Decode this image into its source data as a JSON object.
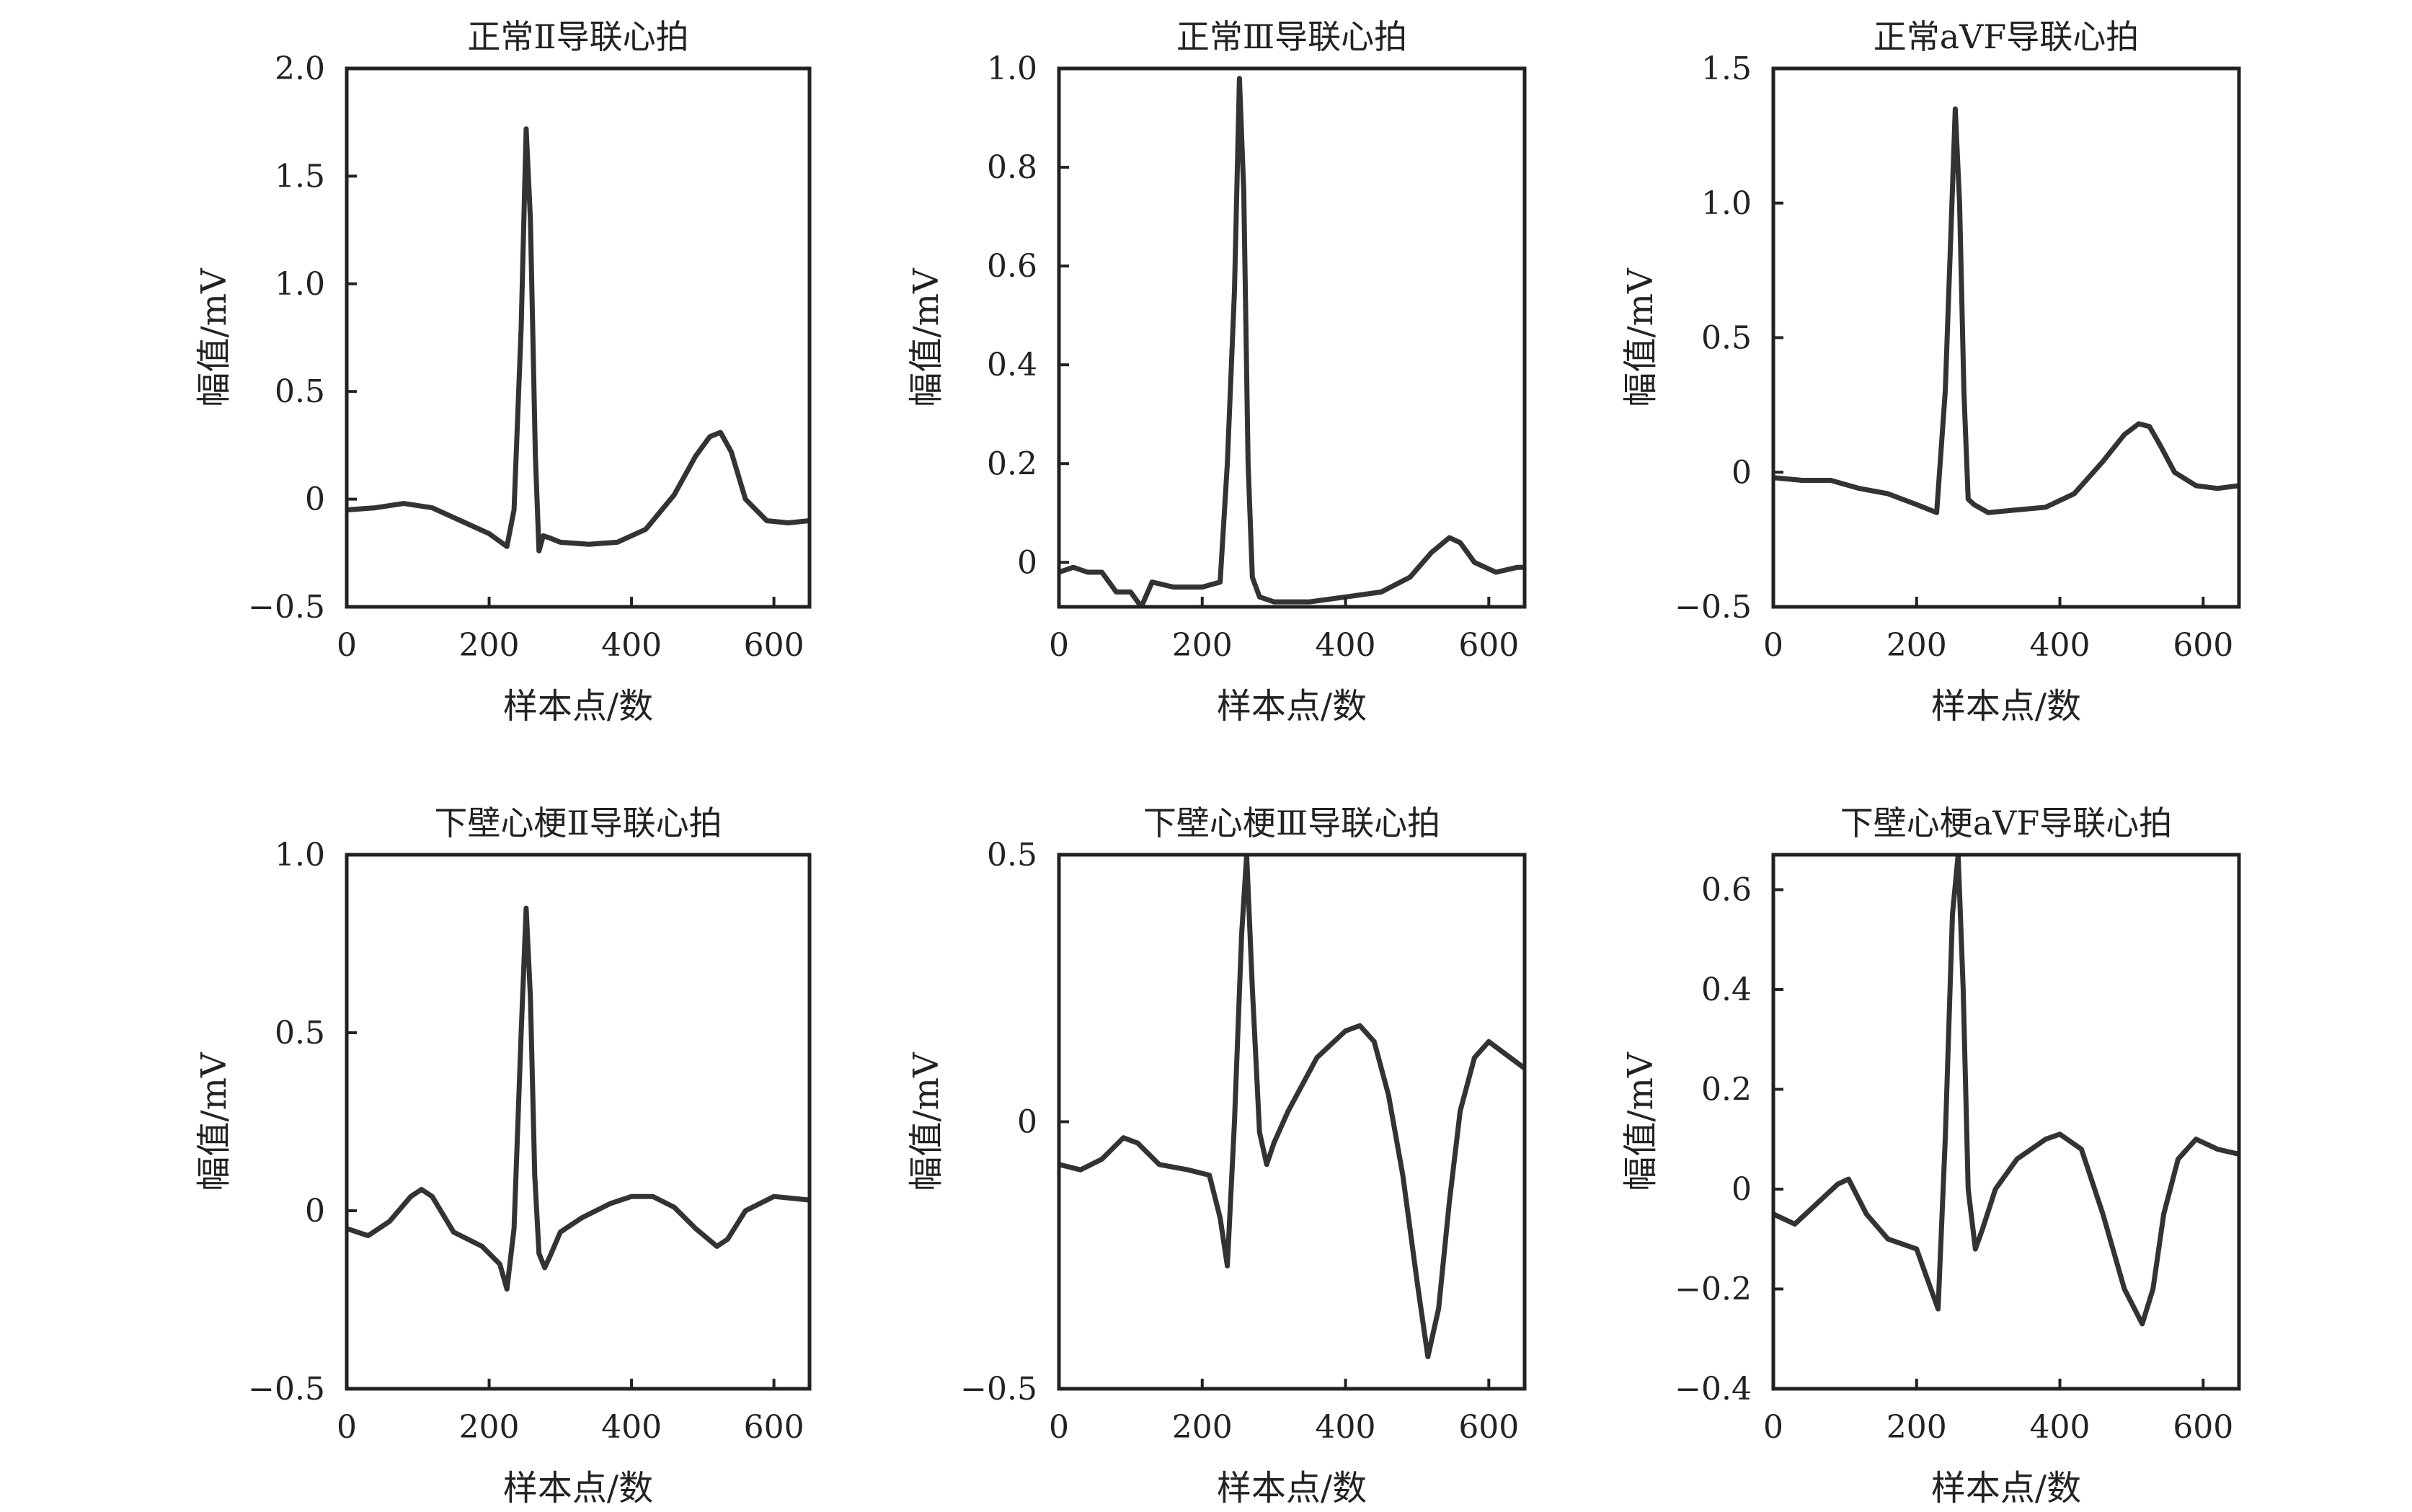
{
  "chart_data": [
    {
      "type": "line",
      "title": "正常Ⅱ导联心拍",
      "xlabel": "样本点/数",
      "ylabel": "幅值/mV",
      "xlim": [
        0,
        650
      ],
      "ylim": [
        -0.5,
        2.0
      ],
      "xticks": [
        0,
        200,
        400,
        600
      ],
      "xtick_labels": [
        "0",
        "200",
        "400",
        "600"
      ],
      "yticks": [
        -0.5,
        0,
        0.5,
        1.0,
        1.5,
        2.0
      ],
      "ytick_labels": [
        "−0.5",
        "0",
        "0.5",
        "1.0",
        "1.5",
        "2.0"
      ],
      "series": [
        {
          "x": [
            0,
            40,
            80,
            120,
            160,
            200,
            225,
            235,
            245,
            252,
            258,
            265,
            270,
            276,
            285,
            300,
            340,
            380,
            420,
            460,
            490,
            510,
            525,
            540,
            560,
            590,
            620,
            650
          ],
          "y": [
            -0.05,
            -0.04,
            -0.02,
            -0.04,
            -0.1,
            -0.16,
            -0.22,
            -0.05,
            0.8,
            1.72,
            1.3,
            0.2,
            -0.24,
            -0.17,
            -0.18,
            -0.2,
            -0.21,
            -0.2,
            -0.14,
            0.02,
            0.2,
            0.29,
            0.31,
            0.22,
            0.0,
            -0.1,
            -0.11,
            -0.1
          ]
        }
      ]
    },
    {
      "type": "line",
      "title": "正常Ⅲ导联心拍",
      "xlabel": "样本点/数",
      "ylabel": "幅值/mV",
      "xlim": [
        0,
        650
      ],
      "ylim": [
        -0.09,
        1.0
      ],
      "xticks": [
        0,
        200,
        400,
        600
      ],
      "xtick_labels": [
        "0",
        "200",
        "400",
        "600"
      ],
      "yticks": [
        0,
        0.2,
        0.4,
        0.6,
        0.8,
        1.0
      ],
      "ytick_labels": [
        "0",
        "0.2",
        "0.4",
        "0.6",
        "0.8",
        "1.0"
      ],
      "series": [
        {
          "x": [
            0,
            20,
            40,
            60,
            80,
            100,
            115,
            130,
            160,
            200,
            225,
            235,
            245,
            252,
            258,
            264,
            270,
            280,
            300,
            350,
            400,
            450,
            490,
            520,
            545,
            560,
            580,
            610,
            640,
            650
          ],
          "y": [
            -0.02,
            -0.01,
            -0.02,
            -0.02,
            -0.06,
            -0.06,
            -0.09,
            -0.04,
            -0.05,
            -0.05,
            -0.04,
            0.2,
            0.55,
            0.98,
            0.75,
            0.2,
            -0.03,
            -0.07,
            -0.08,
            -0.08,
            -0.07,
            -0.06,
            -0.03,
            0.02,
            0.05,
            0.04,
            0.0,
            -0.02,
            -0.01,
            -0.01
          ]
        }
      ]
    },
    {
      "type": "line",
      "title": "正常aVF导联心拍",
      "xlabel": "样本点/数",
      "ylabel": "幅值/mV",
      "xlim": [
        0,
        650
      ],
      "ylim": [
        -0.5,
        1.5
      ],
      "xticks": [
        0,
        200,
        400,
        600
      ],
      "xtick_labels": [
        "0",
        "200",
        "400",
        "600"
      ],
      "yticks": [
        -0.5,
        0,
        0.5,
        1.0,
        1.5
      ],
      "ytick_labels": [
        "−0.5",
        "0",
        "0.5",
        "1.0",
        "1.5"
      ],
      "series": [
        {
          "x": [
            0,
            40,
            80,
            120,
            160,
            200,
            228,
            240,
            248,
            254,
            260,
            266,
            272,
            280,
            300,
            340,
            380,
            420,
            460,
            490,
            510,
            525,
            540,
            560,
            590,
            620,
            650
          ],
          "y": [
            -0.02,
            -0.03,
            -0.03,
            -0.06,
            -0.08,
            -0.12,
            -0.15,
            0.3,
            0.9,
            1.35,
            1.0,
            0.3,
            -0.1,
            -0.12,
            -0.15,
            -0.14,
            -0.13,
            -0.08,
            0.04,
            0.14,
            0.18,
            0.17,
            0.1,
            0.0,
            -0.05,
            -0.06,
            -0.05
          ]
        }
      ]
    },
    {
      "type": "line",
      "title": "下壁心梗Ⅱ导联心拍",
      "xlabel": "样本点/数",
      "ylabel": "幅值/mV",
      "xlim": [
        0,
        650
      ],
      "ylim": [
        -0.5,
        1.0
      ],
      "xticks": [
        0,
        200,
        400,
        600
      ],
      "xtick_labels": [
        "0",
        "200",
        "400",
        "600"
      ],
      "yticks": [
        -0.5,
        0,
        0.5,
        1.0
      ],
      "ytick_labels": [
        "−0.5",
        "0",
        "0.5",
        "1.0"
      ],
      "series": [
        {
          "x": [
            0,
            30,
            60,
            90,
            105,
            120,
            150,
            190,
            215,
            225,
            235,
            245,
            252,
            258,
            264,
            270,
            278,
            285,
            300,
            330,
            370,
            400,
            430,
            460,
            490,
            520,
            535,
            560,
            600,
            650
          ],
          "y": [
            -0.05,
            -0.07,
            -0.03,
            0.04,
            0.06,
            0.04,
            -0.06,
            -0.1,
            -0.15,
            -0.22,
            -0.05,
            0.5,
            0.85,
            0.6,
            0.1,
            -0.12,
            -0.16,
            -0.13,
            -0.06,
            -0.02,
            0.02,
            0.04,
            0.04,
            0.01,
            -0.05,
            -0.1,
            -0.08,
            0.0,
            0.04,
            0.03
          ]
        }
      ]
    },
    {
      "type": "line",
      "title": "下壁心梗Ⅲ导联心拍",
      "xlabel": "样本点/数",
      "ylabel": "幅值/mV",
      "xlim": [
        0,
        650
      ],
      "ylim": [
        -0.5,
        0.5
      ],
      "xticks": [
        0,
        200,
        400,
        600
      ],
      "xtick_labels": [
        "0",
        "200",
        "400",
        "600"
      ],
      "yticks": [
        -0.5,
        0,
        0.5
      ],
      "ytick_labels": [
        "−0.5",
        "0",
        "0.5"
      ],
      "series": [
        {
          "x": [
            0,
            30,
            60,
            90,
            110,
            140,
            180,
            210,
            225,
            235,
            245,
            255,
            262,
            270,
            280,
            290,
            300,
            320,
            360,
            400,
            420,
            440,
            460,
            480,
            500,
            515,
            530,
            545,
            560,
            580,
            600,
            620,
            650
          ],
          "y": [
            -0.08,
            -0.09,
            -0.07,
            -0.03,
            -0.04,
            -0.08,
            -0.09,
            -0.1,
            -0.18,
            -0.27,
            0.0,
            0.35,
            0.5,
            0.25,
            -0.02,
            -0.08,
            -0.04,
            0.02,
            0.12,
            0.17,
            0.18,
            0.15,
            0.05,
            -0.1,
            -0.3,
            -0.44,
            -0.35,
            -0.15,
            0.02,
            0.12,
            0.15,
            0.13,
            0.1
          ]
        }
      ]
    },
    {
      "type": "line",
      "title": "下壁心梗aVF导联心拍",
      "xlabel": "样本点/数",
      "ylabel": "幅值/mV",
      "xlim": [
        0,
        650
      ],
      "ylim": [
        -0.4,
        0.67
      ],
      "xticks": [
        0,
        200,
        400,
        600
      ],
      "xtick_labels": [
        "0",
        "200",
        "400",
        "600"
      ],
      "yticks": [
        -0.4,
        -0.2,
        0,
        0.2,
        0.4,
        0.6
      ],
      "ytick_labels": [
        "−0.4",
        "−0.2",
        "0",
        "0.2",
        "0.4",
        "0.6"
      ],
      "series": [
        {
          "x": [
            0,
            30,
            60,
            90,
            105,
            130,
            160,
            200,
            220,
            230,
            240,
            250,
            258,
            265,
            272,
            282,
            292,
            310,
            340,
            380,
            400,
            430,
            460,
            490,
            515,
            530,
            545,
            565,
            590,
            620,
            650
          ],
          "y": [
            -0.05,
            -0.07,
            -0.03,
            0.01,
            0.02,
            -0.05,
            -0.1,
            -0.12,
            -0.2,
            -0.24,
            0.1,
            0.55,
            0.67,
            0.4,
            0.0,
            -0.12,
            -0.08,
            0.0,
            0.06,
            0.1,
            0.11,
            0.08,
            -0.05,
            -0.2,
            -0.27,
            -0.2,
            -0.05,
            0.06,
            0.1,
            0.08,
            0.07
          ]
        }
      ]
    }
  ]
}
